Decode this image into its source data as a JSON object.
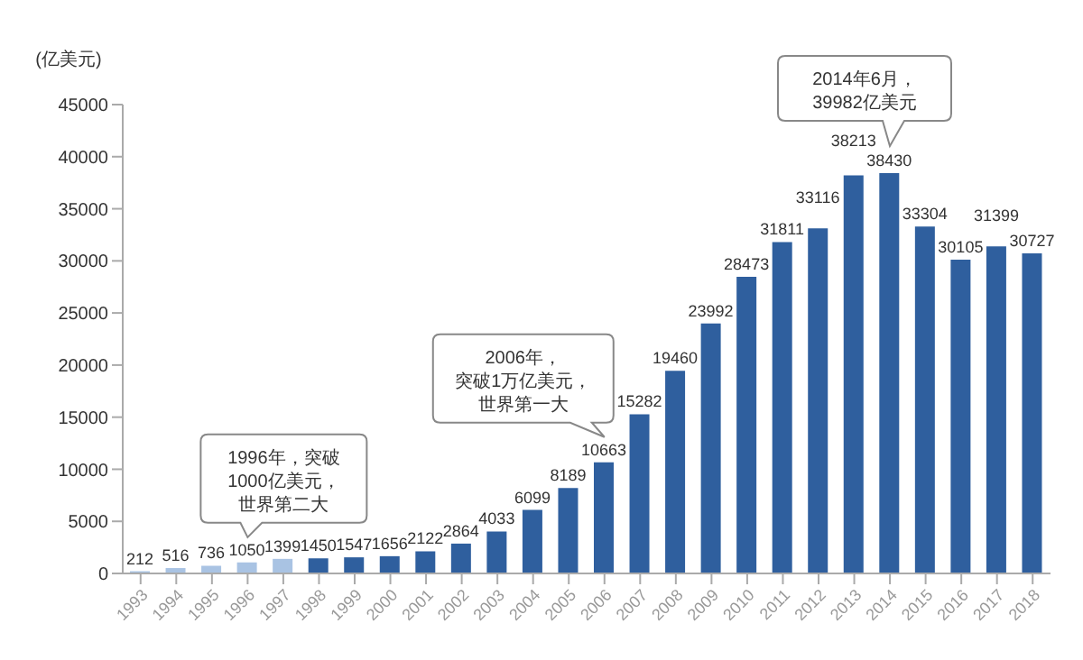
{
  "chart_data": {
    "type": "bar",
    "ylabel": "(亿美元)",
    "categories": [
      "1993",
      "1994",
      "1995",
      "1996",
      "1997",
      "1998",
      "1999",
      "2000",
      "2001",
      "2002",
      "2003",
      "2004",
      "2005",
      "2006",
      "2007",
      "2008",
      "2009",
      "2010",
      "2011",
      "2012",
      "2013",
      "2014",
      "2015",
      "2016",
      "2017",
      "2018"
    ],
    "values": [
      212,
      516,
      736,
      1050,
      1399,
      1450,
      1547,
      1656,
      2122,
      2864,
      4033,
      6099,
      8189,
      10663,
      15282,
      19460,
      23992,
      28473,
      31811,
      33116,
      38213,
      38430,
      33304,
      30105,
      31399,
      30727
    ],
    "colors": [
      "#a9c3e3",
      "#a9c3e3",
      "#a9c3e3",
      "#a9c3e3",
      "#a9c3e3",
      "#2f5f9e",
      "#2f5f9e",
      "#2f5f9e",
      "#2f5f9e",
      "#2f5f9e",
      "#2f5f9e",
      "#2f5f9e",
      "#2f5f9e",
      "#2f5f9e",
      "#2f5f9e",
      "#2f5f9e",
      "#2f5f9e",
      "#2f5f9e",
      "#2f5f9e",
      "#2f5f9e",
      "#2f5f9e",
      "#2f5f9e",
      "#2f5f9e",
      "#2f5f9e",
      "#2f5f9e",
      "#2f5f9e"
    ],
    "ylim": [
      0,
      45000
    ],
    "yticks": [
      0,
      5000,
      10000,
      15000,
      20000,
      25000,
      30000,
      35000,
      40000,
      45000
    ],
    "data_labels": true,
    "grid": false,
    "legend": false,
    "annotations": [
      {
        "text": "1996年，突破1000亿美元，世界第二大",
        "x": "1996",
        "y": 1050
      },
      {
        "text": "2006年，突破1万亿美元，世界第一大",
        "x": "2006",
        "y": 10663
      },
      "2014年6月，39982亿美元"
    ]
  }
}
